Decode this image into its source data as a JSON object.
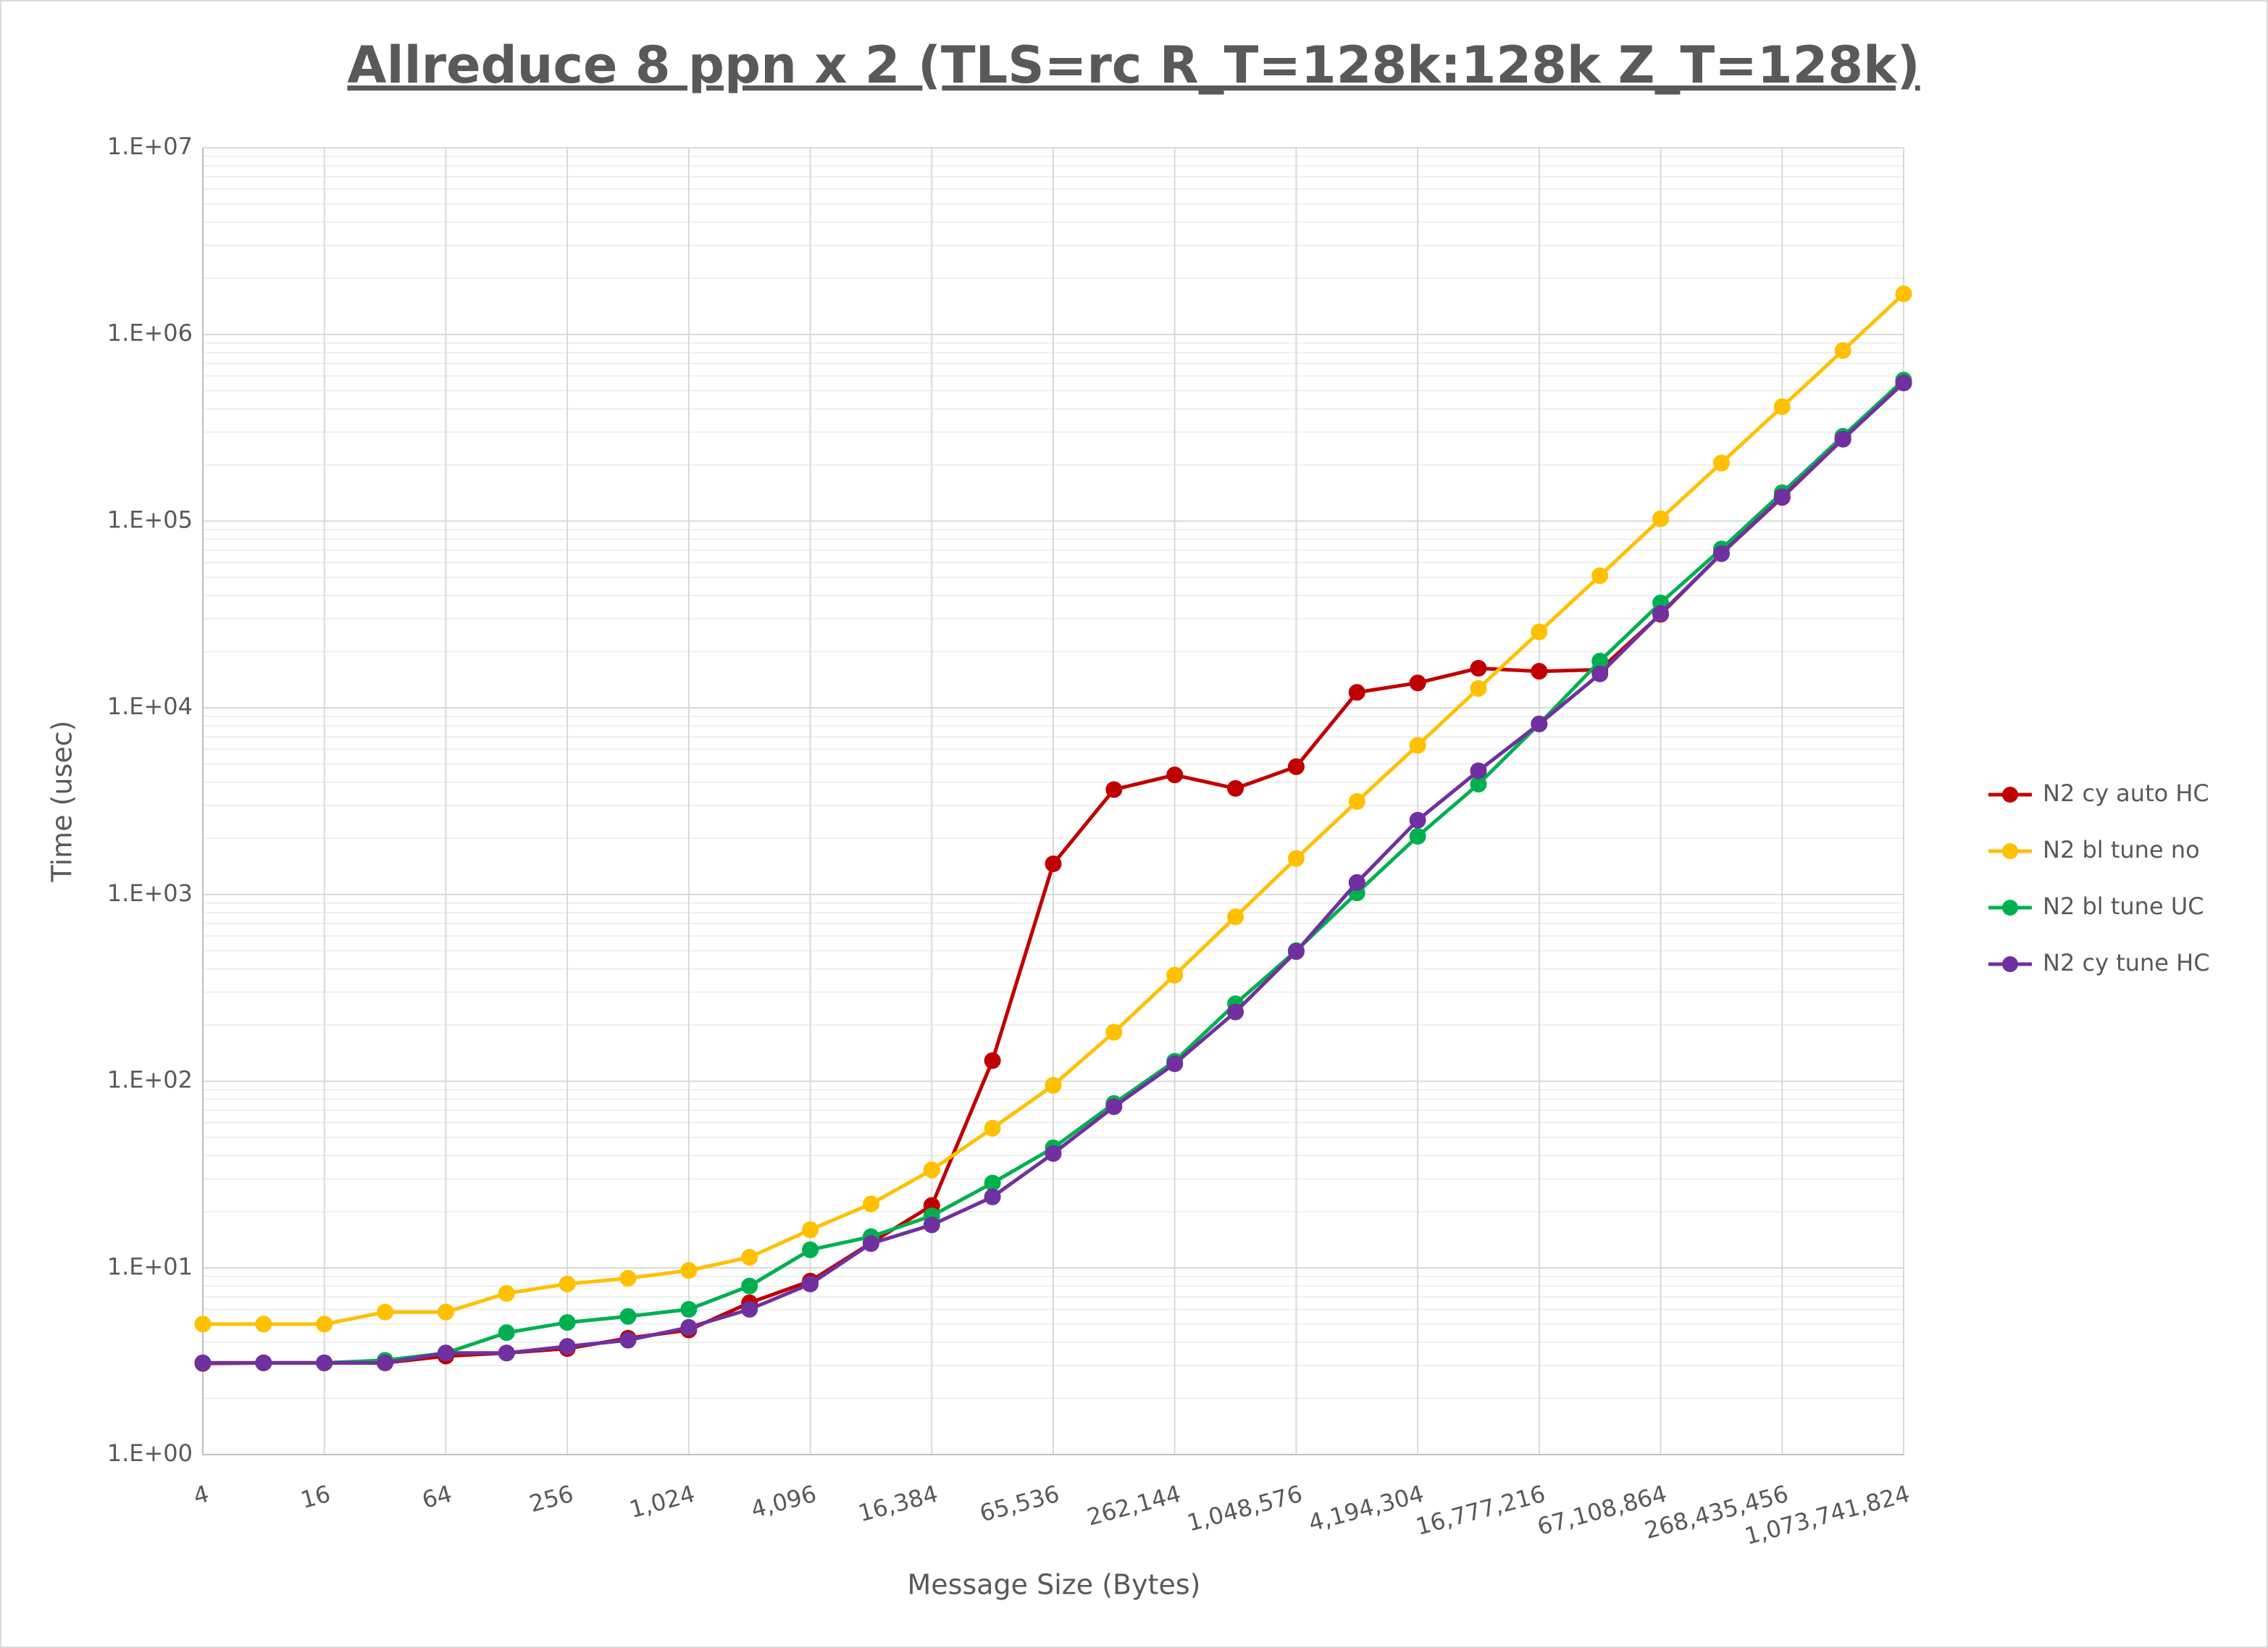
{
  "chart_data": {
    "type": "line",
    "title": "Allreduce 8 ppn x 2 (TLS=rc R_T=128k:128k Z_T=128k)",
    "x_label": "Message Size (Bytes)",
    "y_label": "Time (usec)",
    "categories": [
      "4",
      null,
      "16",
      null,
      "64",
      null,
      "256",
      null,
      "1,024",
      null,
      "4,096",
      null,
      "16,384",
      null,
      "65,536",
      null,
      "262,144",
      null,
      "1,048,576",
      null,
      "4,194,304",
      null,
      "16,777,216",
      null,
      "67,108,864",
      null,
      "268,435,456",
      null,
      "1,073,741,824"
    ],
    "y_scale": "log",
    "ylim": [
      1,
      10000000
    ],
    "yticks": [
      {
        "value": 1,
        "label": "1.E+00"
      },
      {
        "value": 10,
        "label": "1.E+01"
      },
      {
        "value": 100,
        "label": "1.E+02"
      },
      {
        "value": 1000,
        "label": "1.E+03"
      },
      {
        "value": 10000,
        "label": "1.E+04"
      },
      {
        "value": 100000,
        "label": "1.E+05"
      },
      {
        "value": 1000000,
        "label": "1.E+06"
      },
      {
        "value": 10000000,
        "label": "1.E+07"
      }
    ],
    "grid": true,
    "legend": "right",
    "series": [
      {
        "name": "N2 cy auto HC",
        "color": "#c00000",
        "values": [
          3.08,
          3.1,
          3.1,
          3.1,
          3.37,
          3.5,
          3.7,
          4.2,
          4.65,
          6.5,
          8.5,
          13.6,
          21.6,
          129,
          1460,
          3650,
          4370,
          3700,
          4840,
          12100,
          13600,
          16300,
          15700,
          16000,
          31700,
          67000,
          134000,
          275000,
          550000
        ]
      },
      {
        "name": "N2 bl tune no",
        "color": "#ffc000",
        "values": [
          5.0,
          5.0,
          5.0,
          5.8,
          5.8,
          7.3,
          8.2,
          8.8,
          9.7,
          11.4,
          16,
          22,
          33.5,
          56,
          95,
          183,
          370,
          760,
          1560,
          3150,
          6300,
          12700,
          25500,
          51000,
          103000,
          205000,
          410000,
          820000,
          1650000
        ]
      },
      {
        "name": "N2 bl tune UC",
        "color": "#00b050",
        "values": [
          3.1,
          3.1,
          3.1,
          3.2,
          3.5,
          4.5,
          5.1,
          5.5,
          6.0,
          8.0,
          12.5,
          14.7,
          19,
          28.5,
          44,
          76,
          128,
          260,
          500,
          1020,
          2050,
          3900,
          8200,
          17800,
          36500,
          71000,
          142000,
          285000,
          570000
        ]
      },
      {
        "name": "N2 cy tune HC",
        "color": "#7030a0",
        "values": [
          3.1,
          3.1,
          3.1,
          3.1,
          3.5,
          3.5,
          3.8,
          4.1,
          4.8,
          6.0,
          8.2,
          13.5,
          17,
          24,
          41,
          73,
          124,
          235,
          495,
          1160,
          2500,
          4600,
          8200,
          15200,
          32000,
          67000,
          135000,
          275000,
          550000
        ]
      }
    ]
  }
}
